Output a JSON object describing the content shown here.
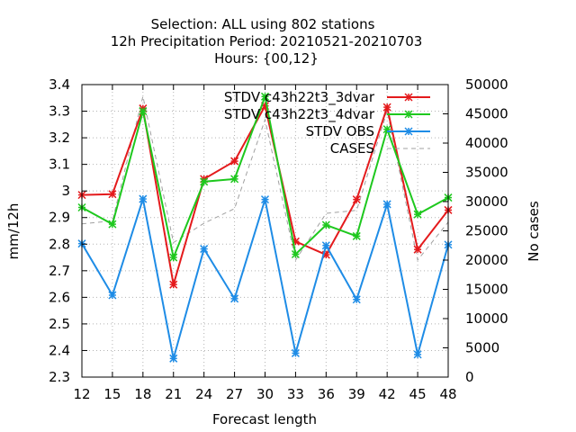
{
  "chart_data": {
    "type": "line",
    "title_lines": [
      "Selection: ALL using   802 stations",
      "12h Precipitation   Period: 20210521-20210703",
      "Hours: {00,12}"
    ],
    "xlabel": "Forecast length",
    "ylabel": "mm/12h",
    "y2label": "No cases",
    "x": [
      12,
      15,
      18,
      21,
      24,
      27,
      30,
      33,
      36,
      39,
      42,
      45,
      48
    ],
    "xlim": [
      12,
      48
    ],
    "ylim": [
      2.3,
      3.4
    ],
    "y2lim": [
      0,
      50000
    ],
    "yticks": [
      "2.3",
      "2.4",
      "2.5",
      "2.6",
      "2.7",
      "2.8",
      "2.9",
      "3",
      "3.1",
      "3.2",
      "3.3",
      "3.4"
    ],
    "y2ticks": [
      "0",
      "5000",
      "10000",
      "15000",
      "20000",
      "25000",
      "30000",
      "35000",
      "40000",
      "45000",
      "50000"
    ],
    "legend_position": "top-right",
    "series": [
      {
        "name": "STDV c43h22t3_3dvar",
        "axis": "y",
        "color": "#e41a1c",
        "style": "solid",
        "marker": "star",
        "values": [
          2.985,
          2.988,
          3.31,
          2.648,
          3.045,
          3.112,
          3.32,
          2.81,
          2.76,
          2.968,
          3.315,
          2.78,
          2.928
        ]
      },
      {
        "name": "STDV c43h22t3_4dvar",
        "axis": "y",
        "color": "#1ec81e",
        "style": "solid",
        "marker": "star",
        "values": [
          2.938,
          2.875,
          3.3,
          2.75,
          3.035,
          3.045,
          3.355,
          2.762,
          2.872,
          2.83,
          3.232,
          2.912,
          2.975
        ]
      },
      {
        "name": "STDV OBS",
        "axis": "y",
        "color": "#1e8ce6",
        "style": "solid",
        "marker": "star",
        "values": [
          2.802,
          2.608,
          2.97,
          2.37,
          2.782,
          2.595,
          2.968,
          2.39,
          2.795,
          2.592,
          2.95,
          2.385,
          2.798
        ]
      },
      {
        "name": "CASES",
        "axis": "y2",
        "color": "#a0a0a0",
        "style": "dashed",
        "marker": "none",
        "values": [
          26200,
          26700,
          48000,
          23000,
          26300,
          28800,
          44000,
          20000,
          28000,
          28500,
          45500,
          20000,
          26500
        ]
      }
    ]
  }
}
